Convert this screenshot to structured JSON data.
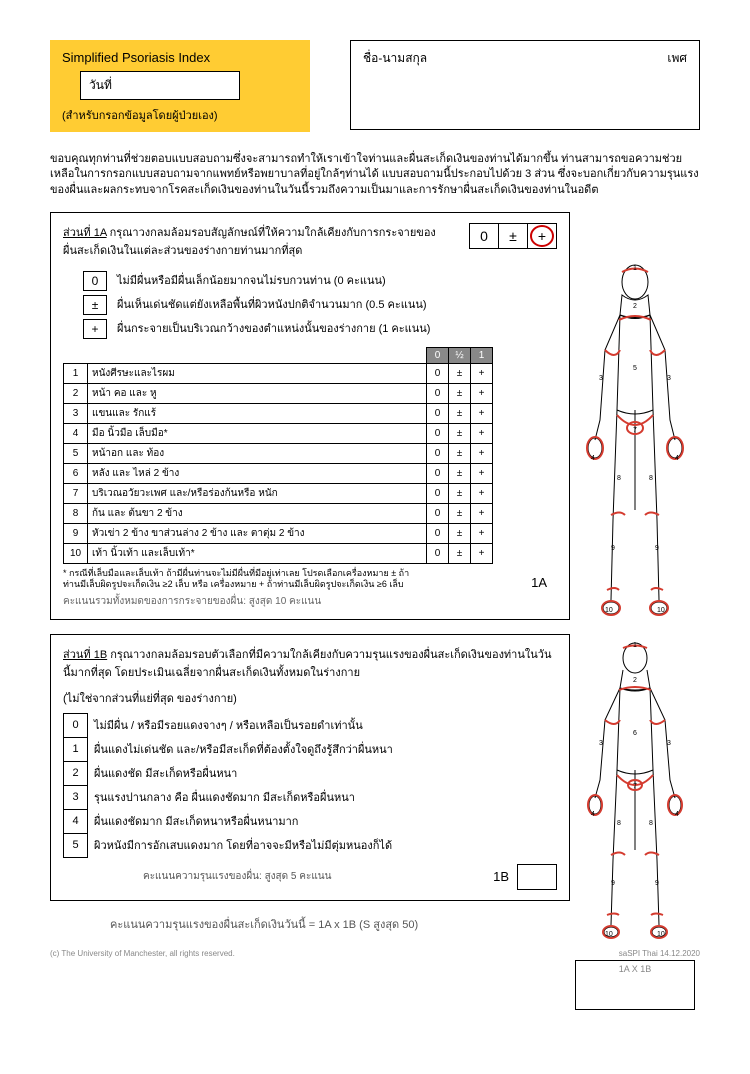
{
  "header": {
    "title": "Simplified Psoriasis Index",
    "date_label": "วันที่",
    "subtitle": "(สำหรับกรอกข้อมูลโดยผู้ป่วยเอง)",
    "name_label": "ชื่อ-นามสกุล",
    "gender_label": "เพศ"
  },
  "intro": "ขอบคุณทุกท่านที่ช่วยตอบแบบสอบถามซึ่งจะสามารถทำให้เราเข้าใจท่านและผื่นสะเก็ดเงินของท่านได้มากขึ้น ท่านสามารถขอความช่วยเหลือในการกรอกแบบสอบถามจากแพทย์หรือพยาบาลที่อยู่ใกล้ๆท่านได้ แบบสอบถามนี้ประกอบไปด้วย 3 ส่วน ซึ่งจะบอกเกี่ยวกับความรุนแรงของผื่นและผลกระทบจากโรคสะเก็ดเงินของท่านในวันนี้รวมถึงความเป็นมาและการรักษาผื่นสะเก็ดเงินของท่านในอดีต",
  "section1A": {
    "title_underline": "ส่วนที่ 1A",
    "title_rest": "กรุณาวงกลมล้อมรอบสัญลักษณ์ที่ให้ความใกล้เคียงกับการกระจายของผื่นสะเก็ดเงินในแต่ละส่วนของร่างกายท่านมากที่สุด",
    "picker": [
      "0",
      "±",
      "+"
    ],
    "picker_circled_index": 2,
    "legend": [
      {
        "sym": "0",
        "txt": "ไม่มีผื่นหรือมีผื่นเล็กน้อยมากจนไม่รบกวนท่าน (0 คะแนน)"
      },
      {
        "sym": "±",
        "txt": "ผื่นเห็นเด่นชัดแต่ยังเหลือพื้นที่ผิวหนังปกติจำนวนมาก (0.5 คะแนน)"
      },
      {
        "sym": "+",
        "txt": "ผื่นกระจายเป็นบริเวณกว้างของตำแหน่งนั้นของร่างกาย (1 คะแนน)"
      }
    ],
    "table_headers": [
      "0",
      "½",
      "1"
    ],
    "rows": [
      {
        "n": "1",
        "label": "หนังศีรษะและไรผม"
      },
      {
        "n": "2",
        "label": "หน้า คอ และ หู"
      },
      {
        "n": "3",
        "label": "แขนและ รักแร้"
      },
      {
        "n": "4",
        "label": "มือ นิ้วมือ เล็บมือ*"
      },
      {
        "n": "5",
        "label": "หน้าอก และ ท้อง"
      },
      {
        "n": "6",
        "label": "หลัง และ ไหล่ 2 ข้าง"
      },
      {
        "n": "7",
        "label": "บริเวณอวัยวะเพศ และ/หรือร่องก้นหรือ หนัก"
      },
      {
        "n": "8",
        "label": "ก้น และ ต้นขา 2 ข้าง"
      },
      {
        "n": "9",
        "label": "หัวเข่า 2 ข้าง ขาส่วนล่าง 2 ข้าง และ ตาตุ่ม 2 ข้าง"
      },
      {
        "n": "10",
        "label": "เท้า นิ้วเท้า และเล็บเท้า*"
      }
    ],
    "row_scores": [
      "0",
      "±",
      "+"
    ],
    "footnote": "* กรณีที่เล็บมือและเล็บเท้า ถ้ามีผื่นท่านจะไม่มีผื่นที่มีอยู่เท่าเลย โปรดเลือกเครื่องหมาย ± ถ้าท่านมีเล็บผิดรูปจะเก็ดเงิน ≥2 เล็บ หรือ เครื่องหมาย + ถ้าท่านมีเล็บผิดรูปจะเก็ดเงิน ≥6 เล็บ",
    "score_label": "1A",
    "summary": "คะแนนรวมทั้งหมดของการกระจายของผื่น: สูงสุด 10 คะแนน"
  },
  "section1B": {
    "title_underline": "ส่วนที่ 1B",
    "title_rest": "กรุณาวงกลมล้อมรอบตัวเลือกที่มีความใกล้เคียงกับความรุนแรงของผื่นสะเก็ดเงินของท่านในวันนี้มากที่สุด โดยประเมินเฉลี่ยจากผื่นสะเก็ดเงินทั้งหมดในร่างกาย",
    "title_note": "(ไม่ใช่จากส่วนที่แย่ที่สุด ของร่างกาย)",
    "rows": [
      {
        "sym": "0",
        "txt": "ไม่มีผื่น / หรือมีรอยแดงจางๆ / หรือเหลือเป็นรอยดำเท่านั้น"
      },
      {
        "sym": "1",
        "txt": "ผื่นแดงไม่เด่นชัด และ/หรือมีสะเก็ดที่ต้องตั้งใจดูถึงรู้สึกว่าผื่นหนา"
      },
      {
        "sym": "2",
        "txt": "ผื่นแดงชัด มีสะเก็ดหรือผื่นหนา"
      },
      {
        "sym": "3",
        "txt": "รุนแรงปานกลาง คือ ผื่นแดงชัดมาก มีสะเก็ดหรือผื่นหนา"
      },
      {
        "sym": "4",
        "txt": "ผื่นแดงชัดมาก มีสะเก็ดหนาหรือผื่นหนามาก"
      },
      {
        "sym": "5",
        "txt": "ผิวหนังมีการอักเสบแดงมาก โดยที่อาจจะมีหรือไม่มีตุ่มหนองก็ได้"
      }
    ],
    "score_text": "คะแนนความรุนแรงของผื่น: สูงสุด 5 คะแนน",
    "score_label": "1B"
  },
  "formula": "คะแนนความรุนแรงของผื่นสะเก็ดเงินวันนี้  = 1A x 1B   (S สูงสุด 50)",
  "result_label": "1A X 1B",
  "copyright_left": "(c) The University of Manchester, all rights reserved.",
  "copyright_right": "saSPI Thai 14.12.2020",
  "colors": {
    "yellow": "#ffcc33",
    "red_outline": "#d43b2f",
    "grey_header": "#888888"
  }
}
